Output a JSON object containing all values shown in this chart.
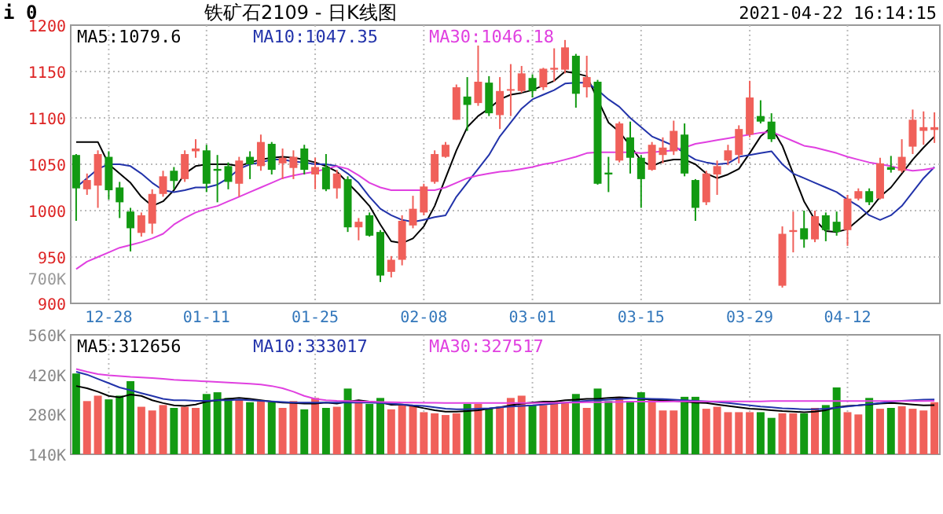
{
  "chart_data": [
    {
      "type": "candlestick",
      "title": "铁矿石2109 - 日K线图",
      "annotations": [
        "i 0",
        "2021-04-22 16:14:15"
      ],
      "categories": [
        null,
        null,
        null,
        "12-28",
        null,
        null,
        null,
        null,
        null,
        null,
        null,
        null,
        "01-11",
        null,
        null,
        null,
        null,
        null,
        null,
        null,
        null,
        null,
        "01-25",
        null,
        null,
        null,
        null,
        null,
        null,
        null,
        null,
        null,
        "02-08",
        null,
        null,
        null,
        null,
        null,
        null,
        null,
        null,
        null,
        "03-01",
        null,
        null,
        null,
        null,
        null,
        null,
        null,
        null,
        null,
        "03-15",
        null,
        null,
        null,
        null,
        null,
        null,
        null,
        null,
        null,
        "03-29",
        null,
        null,
        null,
        null,
        null,
        null,
        null,
        null,
        "04-12",
        null,
        null,
        null,
        null,
        null,
        null,
        null,
        null
      ],
      "ohlc": [
        [
          1060,
          1061,
          989,
          1024
        ],
        [
          1023,
          1040,
          1017,
          1033
        ],
        [
          1027,
          1065,
          1003,
          1061
        ],
        [
          1058,
          1064,
          1012,
          1022
        ],
        [
          1025,
          1031,
          992,
          1009
        ],
        [
          999,
          1003,
          956,
          981
        ],
        [
          976,
          998,
          972,
          995
        ],
        [
          986,
          1023,
          975,
          1018
        ],
        [
          1018,
          1043,
          1015,
          1037
        ],
        [
          1043,
          1047,
          1023,
          1032
        ],
        [
          1034,
          1065,
          1031,
          1061
        ],
        [
          1064,
          1077,
          1057,
          1067
        ],
        [
          1065,
          1071,
          1020,
          1029
        ],
        [
          1045,
          1060,
          1009,
          1043
        ],
        [
          1048,
          1052,
          1023,
          1031
        ],
        [
          1029,
          1058,
          1015,
          1054
        ],
        [
          1058,
          1064,
          1034,
          1050
        ],
        [
          1048,
          1082,
          1043,
          1074
        ],
        [
          1072,
          1074,
          1039,
          1044
        ],
        [
          1051,
          1067,
          1034,
          1057
        ],
        [
          1046,
          1065,
          1034,
          1058
        ],
        [
          1067,
          1071,
          1039,
          1044
        ],
        [
          1039,
          1057,
          1023,
          1047
        ],
        [
          1047,
          1061,
          1021,
          1023
        ],
        [
          1024,
          1044,
          1013,
          1040
        ],
        [
          1034,
          1037,
          977,
          982
        ],
        [
          982,
          992,
          968,
          988
        ],
        [
          995,
          998,
          972,
          973
        ],
        [
          977,
          979,
          923,
          930
        ],
        [
          934,
          951,
          928,
          947
        ],
        [
          947,
          995,
          941,
          989
        ],
        [
          984,
          1016,
          981,
          1002
        ],
        [
          998,
          1029,
          995,
          1026
        ],
        [
          1031,
          1065,
          1029,
          1061
        ],
        [
          1058,
          1074,
          1057,
          1071
        ],
        [
          1098,
          1136,
          1098,
          1133
        ],
        [
          1123,
          1144,
          1086,
          1114
        ],
        [
          1116,
          1178,
          1113,
          1139
        ],
        [
          1138,
          1145,
          1102,
          1105
        ],
        [
          1103,
          1144,
          1088,
          1129
        ],
        [
          1130,
          1158,
          1102,
          1131
        ],
        [
          1129,
          1156,
          1127,
          1148
        ],
        [
          1143,
          1147,
          1122,
          1129
        ],
        [
          1133,
          1154,
          1130,
          1153
        ],
        [
          1152,
          1175,
          1139,
          1154
        ],
        [
          1152,
          1184,
          1148,
          1176
        ],
        [
          1167,
          1169,
          1111,
          1126
        ],
        [
          1133,
          1167,
          1122,
          1144
        ],
        [
          1139,
          1141,
          1028,
          1029
        ],
        [
          1041,
          1058,
          1020,
          1039
        ],
        [
          1054,
          1096,
          1052,
          1094
        ],
        [
          1079,
          1096,
          1040,
          1057
        ],
        [
          1057,
          1060,
          1003,
          1034
        ],
        [
          1044,
          1074,
          1043,
          1071
        ],
        [
          1060,
          1079,
          1051,
          1068
        ],
        [
          1064,
          1097,
          1060,
          1086
        ],
        [
          1082,
          1094,
          1037,
          1040
        ],
        [
          1033,
          1034,
          989,
          1003
        ],
        [
          1009,
          1043,
          1006,
          1040
        ],
        [
          1039,
          1054,
          1017,
          1048
        ],
        [
          1054,
          1071,
          1049,
          1065
        ],
        [
          1060,
          1092,
          1051,
          1088
        ],
        [
          1082,
          1140,
          1079,
          1122
        ],
        [
          1102,
          1119,
          1094,
          1096
        ],
        [
          1096,
          1105,
          1074,
          1077
        ],
        [
          919,
          983,
          917,
          975
        ],
        [
          977,
          999,
          955,
          979
        ],
        [
          981,
          1000,
          960,
          969
        ],
        [
          969,
          1000,
          966,
          994
        ],
        [
          995,
          998,
          967,
          979
        ],
        [
          988,
          999,
          973,
          977
        ],
        [
          979,
          1017,
          962,
          1013
        ],
        [
          1013,
          1024,
          1011,
          1021
        ],
        [
          1021,
          1024,
          1006,
          1009
        ],
        [
          1013,
          1057,
          1012,
          1051
        ],
        [
          1047,
          1059,
          1041,
          1044
        ],
        [
          1043,
          1077,
          1041,
          1058
        ],
        [
          1069,
          1109,
          1061,
          1098
        ],
        [
          1086,
          1107,
          1071,
          1090
        ],
        [
          1087,
          1106,
          1073,
          1090
        ]
      ],
      "colors": [
        "#129a12",
        "#f0605a",
        "#f0605a",
        "#129a12",
        "#129a12",
        "#129a12",
        "#f0605a",
        "#f0605a",
        "#f0605a",
        "#129a12",
        "#f0605a",
        "#f0605a",
        "#129a12",
        "#129a12",
        "#129a12",
        "#f0605a",
        "#129a12",
        "#f0605a",
        "#129a12",
        "#f0605a",
        "#f0605a",
        "#129a12",
        "#f0605a",
        "#129a12",
        "#f0605a",
        "#129a12",
        "#f0605a",
        "#129a12",
        "#129a12",
        "#f0605a",
        "#f0605a",
        "#f0605a",
        "#f0605a",
        "#f0605a",
        "#f0605a",
        "#f0605a",
        "#129a12",
        "#f0605a",
        "#129a12",
        "#f0605a",
        "#f0605a",
        "#f0605a",
        "#129a12",
        "#f0605a",
        "#f0605a",
        "#f0605a",
        "#129a12",
        "#f0605a",
        "#129a12",
        "#129a12",
        "#f0605a",
        "#129a12",
        "#129a12",
        "#f0605a",
        "#f0605a",
        "#f0605a",
        "#129a12",
        "#129a12",
        "#f0605a",
        "#f0605a",
        "#f0605a",
        "#f0605a",
        "#f0605a",
        "#129a12",
        "#129a12",
        "#f0605a",
        "#f0605a",
        "#129a12",
        "#f0605a",
        "#129a12",
        "#129a12",
        "#f0605a",
        "#f0605a",
        "#129a12",
        "#f0605a",
        "#129a12",
        "#f0605a",
        "#f0605a",
        "#f0605a",
        "#f0605a"
      ],
      "series": [
        {
          "name": "MA5:1079.6",
          "type": "line",
          "color": "#000000",
          "values": [
            1074,
            1074,
            1074,
            1050,
            1040,
            1030,
            1015,
            1005,
            1010,
            1022,
            1040,
            1048,
            1050,
            1050,
            1050,
            1048,
            1052,
            1055,
            1057,
            1058,
            1057,
            1055,
            1052,
            1048,
            1042,
            1030,
            1018,
            1005,
            985,
            967,
            965,
            970,
            983,
            1005,
            1035,
            1065,
            1090,
            1102,
            1110,
            1120,
            1125,
            1127,
            1130,
            1135,
            1140,
            1150,
            1148,
            1145,
            null,
            1095,
            1085,
            1070,
            1054,
            1048,
            1053,
            1055,
            1055,
            1050,
            1040,
            1035,
            1039,
            1045,
            1062,
            1080,
            1090,
            1070,
            1040,
            1010,
            990,
            978,
            977,
            980,
            990,
            1000,
            1015,
            1025,
            1040,
            1055,
            1068,
            1080
          ]
        },
        {
          "name": "MA10:1047.35",
          "type": "line",
          "color": "#2233aa",
          "values": [
            1025,
            1035,
            1045,
            1050,
            1050,
            1048,
            1040,
            1030,
            1022,
            1020,
            1022,
            1025,
            1025,
            1028,
            1035,
            1045,
            1050,
            1052,
            1055,
            1055,
            1053,
            1052,
            1050,
            1050,
            1048,
            1040,
            1030,
            1015,
            1002,
            995,
            990,
            988,
            990,
            993,
            995,
            1015,
            1030,
            1045,
            1060,
            1080,
            1095,
            1110,
            1120,
            1125,
            1130,
            1137,
            1138,
            1138,
            1130,
            1120,
            1112,
            1100,
            1090,
            1080,
            1075,
            1070,
            1062,
            1055,
            1052,
            1050,
            1051,
            1058,
            1060,
            1062,
            1064,
            1050,
            1040,
            1035,
            1030,
            1025,
            1020,
            1012,
            1005,
            995,
            990,
            995,
            1005,
            1020,
            1035,
            1047
          ]
        },
        {
          "name": "MA30:1046.18",
          "type": "line",
          "color": "#e040e0",
          "values": [
            937,
            945,
            950,
            955,
            960,
            963,
            966,
            970,
            975,
            985,
            992,
            998,
            1002,
            1005,
            1010,
            1015,
            1020,
            1025,
            1030,
            1035,
            1038,
            1040,
            1042,
            1045,
            1048,
            1045,
            1038,
            1030,
            1025,
            1022,
            1022,
            1022,
            1022,
            1022,
            1025,
            1030,
            1035,
            1038,
            1040,
            1042,
            1043,
            1045,
            1047,
            1050,
            1052,
            1055,
            1058,
            1062,
            1063,
            1063,
            1063,
            1063,
            1062,
            1063,
            1064,
            1065,
            1068,
            1072,
            1074,
            1076,
            1078,
            1080,
            1082,
            1084,
            1085,
            1080,
            1075,
            1070,
            1068,
            1065,
            1062,
            1058,
            1055,
            1052,
            1050,
            1048,
            1045,
            1043,
            1044,
            1046
          ]
        }
      ],
      "ylim": [
        900,
        1200
      ],
      "yticks": [
        900,
        950,
        1000,
        1050,
        1100,
        1150,
        1200
      ],
      "grid": true,
      "legend": "top left"
    },
    {
      "type": "bar",
      "annotations": [
        "700K"
      ],
      "tick_labels": "y",
      "series": [
        {
          "type": "bar",
          "colors": [
            "#129a12",
            "#f0605a",
            "#f0605a",
            "#129a12",
            "#129a12",
            "#129a12",
            "#f0605a",
            "#f0605a",
            "#f0605a",
            "#129a12",
            "#f0605a",
            "#f0605a",
            "#129a12",
            "#129a12",
            "#129a12",
            "#f0605a",
            "#129a12",
            "#f0605a",
            "#129a12",
            "#f0605a",
            "#f0605a",
            "#129a12",
            "#f0605a",
            "#129a12",
            "#f0605a",
            "#129a12",
            "#f0605a",
            "#129a12",
            "#129a12",
            "#f0605a",
            "#f0605a",
            "#f0605a",
            "#f0605a",
            "#f0605a",
            "#f0605a",
            "#f0605a",
            "#129a12",
            "#f0605a",
            "#129a12",
            "#f0605a",
            "#f0605a",
            "#f0605a",
            "#129a12",
            "#f0605a",
            "#f0605a",
            "#f0605a",
            "#129a12",
            "#f0605a",
            "#129a12",
            "#129a12",
            "#f0605a",
            "#129a12",
            "#129a12",
            "#f0605a",
            "#f0605a",
            "#f0605a",
            "#129a12",
            "#129a12",
            "#f0605a",
            "#f0605a",
            "#f0605a",
            "#f0605a",
            "#f0605a",
            "#129a12",
            "#129a12",
            "#f0605a",
            "#f0605a",
            "#129a12",
            "#f0605a",
            "#129a12",
            "#129a12",
            "#f0605a",
            "#f0605a",
            "#129a12",
            "#f0605a",
            "#129a12",
            "#f0605a",
            "#f0605a",
            "#f0605a",
            "#f0605a"
          ],
          "values": [
            424000,
            327000,
            346000,
            333000,
            346000,
            397000,
            307000,
            294000,
            313000,
            303000,
            307000,
            303000,
            352000,
            358000,
            338000,
            333000,
            323000,
            327000,
            323000,
            303000,
            327000,
            298000,
            338000,
            303000,
            307000,
            371000,
            323000,
            317000,
            338000,
            298000,
            313000,
            313000,
            288000,
            284000,
            278000,
            284000,
            317000,
            317000,
            300000,
            307000,
            338000,
            346000,
            313000,
            313000,
            327000,
            323000,
            352000,
            303000,
            371000,
            327000,
            342000,
            327000,
            358000,
            333000,
            294000,
            294000,
            342000,
            342000,
            300000,
            307000,
            288000,
            288000,
            288000,
            288000,
            268000,
            284000,
            284000,
            284000,
            303000,
            313000,
            375000,
            288000,
            280000,
            338000,
            300000,
            303000,
            309000,
            300000,
            294000,
            323000
          ]
        },
        {
          "name": "MA5:312656",
          "type": "line",
          "color": "#000000",
          "values": [
            380000,
            372000,
            360000,
            345000,
            340000,
            350000,
            345000,
            330000,
            320000,
            312000,
            310000,
            315000,
            325000,
            330000,
            335000,
            338000,
            335000,
            330000,
            325000,
            322000,
            320000,
            318000,
            318000,
            322000,
            318000,
            325000,
            330000,
            325000,
            322000,
            314000,
            315000,
            310000,
            302000,
            295000,
            290000,
            290000,
            292000,
            295000,
            300000,
            305000,
            312000,
            318000,
            322000,
            325000,
            325000,
            330000,
            332000,
            335000,
            335000,
            338000,
            340000,
            338000,
            335000,
            332000,
            330000,
            328000,
            325000,
            322000,
            320000,
            315000,
            310000,
            305000,
            300000,
            298000,
            295000,
            292000,
            290000,
            288000,
            290000,
            295000,
            305000,
            310000,
            312000,
            315000,
            318000,
            320000,
            318000,
            315000,
            312000,
            313000
          ]
        },
        {
          "name": "MA10:333017",
          "type": "line",
          "color": "#2233aa",
          "values": [
            430000,
            420000,
            405000,
            390000,
            375000,
            365000,
            355000,
            345000,
            335000,
            330000,
            330000,
            328000,
            328000,
            330000,
            330000,
            332000,
            330000,
            328000,
            326000,
            324000,
            322000,
            322000,
            322000,
            322000,
            322000,
            322000,
            322000,
            322000,
            320000,
            318000,
            315000,
            312000,
            310000,
            305000,
            300000,
            298000,
            298000,
            300000,
            302000,
            305000,
            308000,
            310000,
            312000,
            315000,
            318000,
            322000,
            325000,
            328000,
            330000,
            332000,
            334000,
            336000,
            336000,
            335000,
            334000,
            332000,
            330000,
            328000,
            326000,
            324000,
            320000,
            316000,
            312000,
            308000,
            305000,
            302000,
            300000,
            298000,
            298000,
            300000,
            304000,
            308000,
            312000,
            316000,
            320000,
            325000,
            328000,
            330000,
            332000,
            333000
          ]
        },
        {
          "name": "MA30:327517",
          "type": "line",
          "color": "#e040e0",
          "values": [
            440000,
            430000,
            422000,
            418000,
            415000,
            412000,
            410000,
            408000,
            405000,
            402000,
            400000,
            398000,
            396000,
            394000,
            392000,
            390000,
            388000,
            385000,
            380000,
            372000,
            360000,
            345000,
            335000,
            330000,
            328000,
            327000,
            326000,
            325000,
            324000,
            323000,
            322000,
            322000,
            321000,
            321000,
            320000,
            320000,
            320000,
            320000,
            320000,
            320000,
            320000,
            320000,
            320000,
            321000,
            321000,
            322000,
            322000,
            323000,
            323000,
            324000,
            324000,
            325000,
            325000,
            325000,
            325000,
            326000,
            326000,
            326000,
            326000,
            326000,
            326000,
            326000,
            326000,
            326000,
            327000,
            327000,
            327000,
            327000,
            327000,
            327000,
            327000,
            327000,
            327000,
            327000,
            327000,
            327000,
            327000,
            327000,
            327000,
            328000
          ]
        }
      ],
      "ylim": [
        140000,
        560000
      ],
      "yticks": [
        {
          "value": 140000,
          "label": "140K"
        },
        {
          "value": 280000,
          "label": "280K"
        },
        {
          "value": 420000,
          "label": "420K"
        },
        {
          "value": 560000,
          "label": "560K"
        }
      ],
      "grid": "x",
      "legend": "top left"
    }
  ]
}
